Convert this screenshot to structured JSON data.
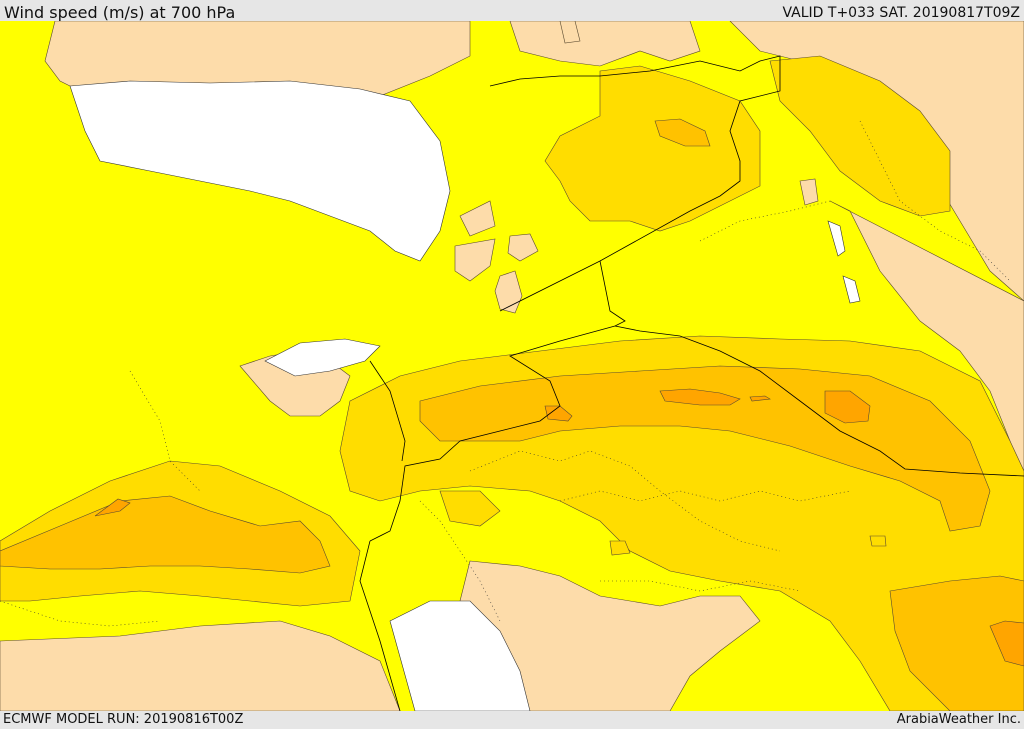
{
  "header": {
    "title": "Wind speed (m/s) at 700 hPa",
    "valid_time": "VALID T+033 SAT. 20190817T09Z"
  },
  "footer": {
    "model_run": "ECMWF MODEL RUN: 20190816T00Z",
    "credit": "ArabiaWeather Inc."
  },
  "colors": {
    "background_fill": "#ffff00",
    "low_wind": "#fddcaa",
    "level_1": "#ffdd00",
    "level_2": "#ffc200",
    "level_3": "#ffa500",
    "sea_mask": "#ffffff",
    "borders": "#000000"
  }
}
